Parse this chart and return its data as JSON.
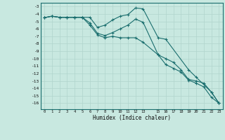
{
  "xlabel": "Humidex (Indice chaleur)",
  "background_color": "#c8e8e0",
  "grid_color": "#b0d4cc",
  "line_color": "#1a6e6e",
  "ylim": [
    -16.8,
    -2.5
  ],
  "xlim": [
    -0.5,
    23.5
  ],
  "yticks": [
    -3,
    -4,
    -5,
    -6,
    -7,
    -8,
    -9,
    -10,
    -11,
    -12,
    -13,
    -14,
    -15,
    -16
  ],
  "xticks": [
    0,
    1,
    2,
    3,
    4,
    5,
    6,
    7,
    8,
    9,
    10,
    11,
    12,
    13,
    15,
    16,
    17,
    18,
    19,
    20,
    21,
    22,
    23
  ],
  "s1_x": [
    0,
    1,
    2,
    3,
    4,
    5,
    6,
    7,
    8,
    9,
    10,
    11,
    12,
    13,
    15,
    16,
    19,
    20,
    22,
    23
  ],
  "s1_y": [
    -4.5,
    -4.3,
    -4.45,
    -4.45,
    -4.45,
    -4.45,
    -4.45,
    -5.8,
    -5.5,
    -4.8,
    -4.3,
    -4.1,
    -3.2,
    -3.3,
    -7.2,
    -7.4,
    -11.5,
    -12.5,
    -14.5,
    -16.0
  ],
  "s2_x": [
    0,
    1,
    2,
    3,
    4,
    5,
    6,
    7,
    8,
    9,
    10,
    11,
    12,
    13,
    15,
    16,
    17,
    18,
    19,
    20,
    21,
    22,
    23
  ],
  "s2_y": [
    -4.5,
    -4.3,
    -4.45,
    -4.45,
    -4.45,
    -4.45,
    -5.2,
    -6.6,
    -6.9,
    -6.5,
    -6.0,
    -5.5,
    -4.7,
    -5.1,
    -9.5,
    -10.0,
    -10.5,
    -11.5,
    -12.8,
    -13.0,
    -13.3,
    -14.5,
    -16.0
  ],
  "s3_x": [
    0,
    1,
    2,
    3,
    4,
    5,
    6,
    7,
    8,
    9,
    10,
    11,
    12,
    13,
    15,
    16,
    17,
    18,
    19,
    20,
    21,
    22,
    23
  ],
  "s3_y": [
    -4.5,
    -4.3,
    -4.45,
    -4.45,
    -4.45,
    -4.45,
    -5.5,
    -6.8,
    -7.2,
    -7.0,
    -7.2,
    -7.2,
    -7.2,
    -7.8,
    -9.5,
    -10.8,
    -11.3,
    -11.8,
    -12.9,
    -13.3,
    -13.8,
    -15.2,
    -16.0
  ]
}
